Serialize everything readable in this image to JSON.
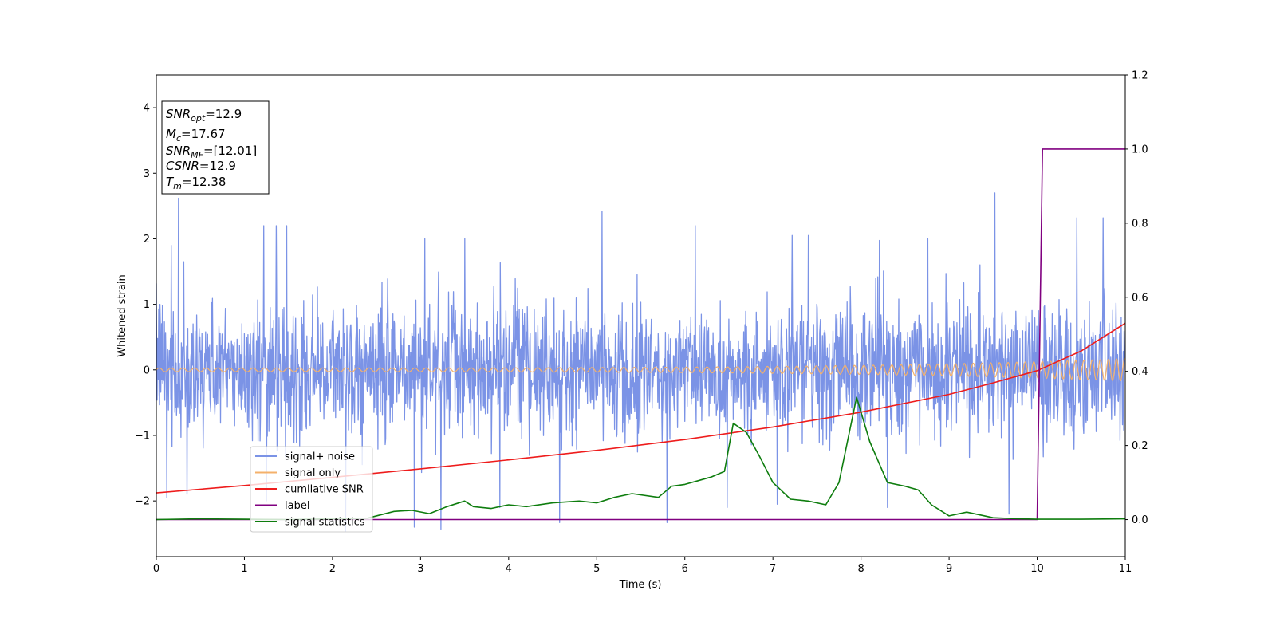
{
  "chart_data": {
    "type": "line",
    "title": "",
    "xlabel": "Time (s)",
    "ylabel": "Whitened strain",
    "xlim": [
      0,
      11
    ],
    "ylim": [
      -2.85,
      4.5
    ],
    "y2lim": [
      -0.1,
      1.2
    ],
    "x_ticks": [
      0,
      1,
      2,
      3,
      4,
      5,
      6,
      7,
      8,
      9,
      10,
      11
    ],
    "y_ticks": [
      -2,
      -1,
      0,
      1,
      2,
      3,
      4
    ],
    "y2_ticks": [
      0.0,
      0.2,
      0.4,
      0.6,
      0.8,
      1.0,
      1.2
    ],
    "x_tick_labels": [
      "0",
      "1",
      "2",
      "3",
      "4",
      "5",
      "6",
      "7",
      "8",
      "9",
      "10",
      "11"
    ],
    "y_tick_labels": [
      "−2",
      "−1",
      "0",
      "1",
      "2",
      "3",
      "4"
    ],
    "y2_tick_labels": [
      "0.0",
      "0.2",
      "0.4",
      "0.6",
      "0.8",
      "1.0",
      "1.2"
    ],
    "grid": false,
    "legend_position": "lower-left",
    "legend": [
      "signal+ noise",
      "signal only",
      "cumilative SNR",
      "label",
      "signal statistics"
    ],
    "annotation": {
      "lines": [
        {
          "sym": "SNR",
          "sub": "opt",
          "val": "=12.9"
        },
        {
          "sym": "M",
          "sub": "c",
          "val": "=17.67"
        },
        {
          "sym": "SNR",
          "sub": "MF",
          "val": "=[12.01]"
        },
        {
          "sym": "CSNR",
          "sub": "",
          "val": "=12.9"
        },
        {
          "sym": "T",
          "sub": "m",
          "val": "=12.38"
        }
      ]
    },
    "series": [
      {
        "name": "signal+ noise",
        "axis": "left",
        "color": "#7b93e6",
        "kind": "noise",
        "std": 0.75,
        "spikes": [
          [
            0.25,
            2.62
          ],
          [
            0.17,
            1.9
          ],
          [
            0.31,
            1.65
          ],
          [
            1.22,
            2.2
          ],
          [
            1.36,
            2.2
          ],
          [
            1.48,
            2.2
          ],
          [
            2.15,
            1.95
          ],
          [
            3.05,
            2.0
          ],
          [
            3.5,
            2.0
          ],
          [
            5.06,
            2.42
          ],
          [
            6.12,
            2.2
          ],
          [
            7.22,
            2.05
          ],
          [
            7.4,
            2.05
          ],
          [
            9.52,
            2.7
          ],
          [
            10.45,
            2.32
          ],
          [
            10.75,
            2.32
          ],
          [
            0.35,
            -1.9
          ],
          [
            1.25,
            -2.0
          ],
          [
            2.15,
            -2.47
          ],
          [
            2.93,
            -2.4
          ],
          [
            3.23,
            -2.43
          ],
          [
            4.58,
            -2.33
          ],
          [
            5.8,
            -2.33
          ],
          [
            6.48,
            -2.1
          ],
          [
            7.05,
            -2.05
          ],
          [
            9.68,
            -2.2
          ],
          [
            0.12,
            -1.95
          ],
          [
            3.9,
            -2.1
          ],
          [
            8.3,
            -2.1
          ]
        ]
      },
      {
        "name": "signal only",
        "axis": "left",
        "color": "#f4b16b",
        "kind": "chirp",
        "amp_start": 0.03,
        "amp_end": 0.17,
        "freq_start": 7.5,
        "freq_end": 11.0
      },
      {
        "name": "cumilative SNR",
        "axis": "right",
        "color": "#ee1c1c",
        "x": [
          0,
          1,
          2,
          3,
          4,
          5,
          6,
          7,
          8,
          9,
          9.5,
          10,
          10.5,
          11
        ],
        "y": [
          0.072,
          0.092,
          0.114,
          0.137,
          0.161,
          0.187,
          0.216,
          0.25,
          0.29,
          0.338,
          0.369,
          0.402,
          0.455,
          0.53
        ]
      },
      {
        "name": "label",
        "axis": "right",
        "color": "#800080",
        "x": [
          0,
          10.0,
          10.06,
          11
        ],
        "y": [
          0.0,
          0.0,
          1.0,
          1.0
        ]
      },
      {
        "name": "signal statistics",
        "axis": "right",
        "color": "#0e7d0e",
        "x": [
          0,
          0.5,
          1.0,
          1.5,
          2.0,
          2.4,
          2.7,
          2.9,
          3.1,
          3.3,
          3.5,
          3.6,
          3.8,
          4.0,
          4.2,
          4.5,
          4.8,
          5.0,
          5.2,
          5.4,
          5.7,
          5.85,
          6.0,
          6.15,
          6.3,
          6.45,
          6.55,
          6.7,
          6.85,
          7.0,
          7.2,
          7.4,
          7.6,
          7.75,
          7.95,
          8.1,
          8.3,
          8.5,
          8.65,
          8.8,
          9.0,
          9.2,
          9.5,
          9.8,
          10.0,
          10.5,
          11.0
        ],
        "y": [
          0.0,
          0.002,
          0.001,
          0.0,
          0.002,
          0.004,
          0.022,
          0.025,
          0.016,
          0.035,
          0.05,
          0.035,
          0.03,
          0.04,
          0.035,
          0.045,
          0.05,
          0.045,
          0.06,
          0.07,
          0.06,
          0.09,
          0.095,
          0.105,
          0.115,
          0.13,
          0.26,
          0.235,
          0.17,
          0.1,
          0.055,
          0.05,
          0.04,
          0.1,
          0.33,
          0.21,
          0.1,
          0.09,
          0.08,
          0.04,
          0.01,
          0.02,
          0.005,
          0.002,
          0.001,
          0.001,
          0.002
        ]
      }
    ]
  }
}
